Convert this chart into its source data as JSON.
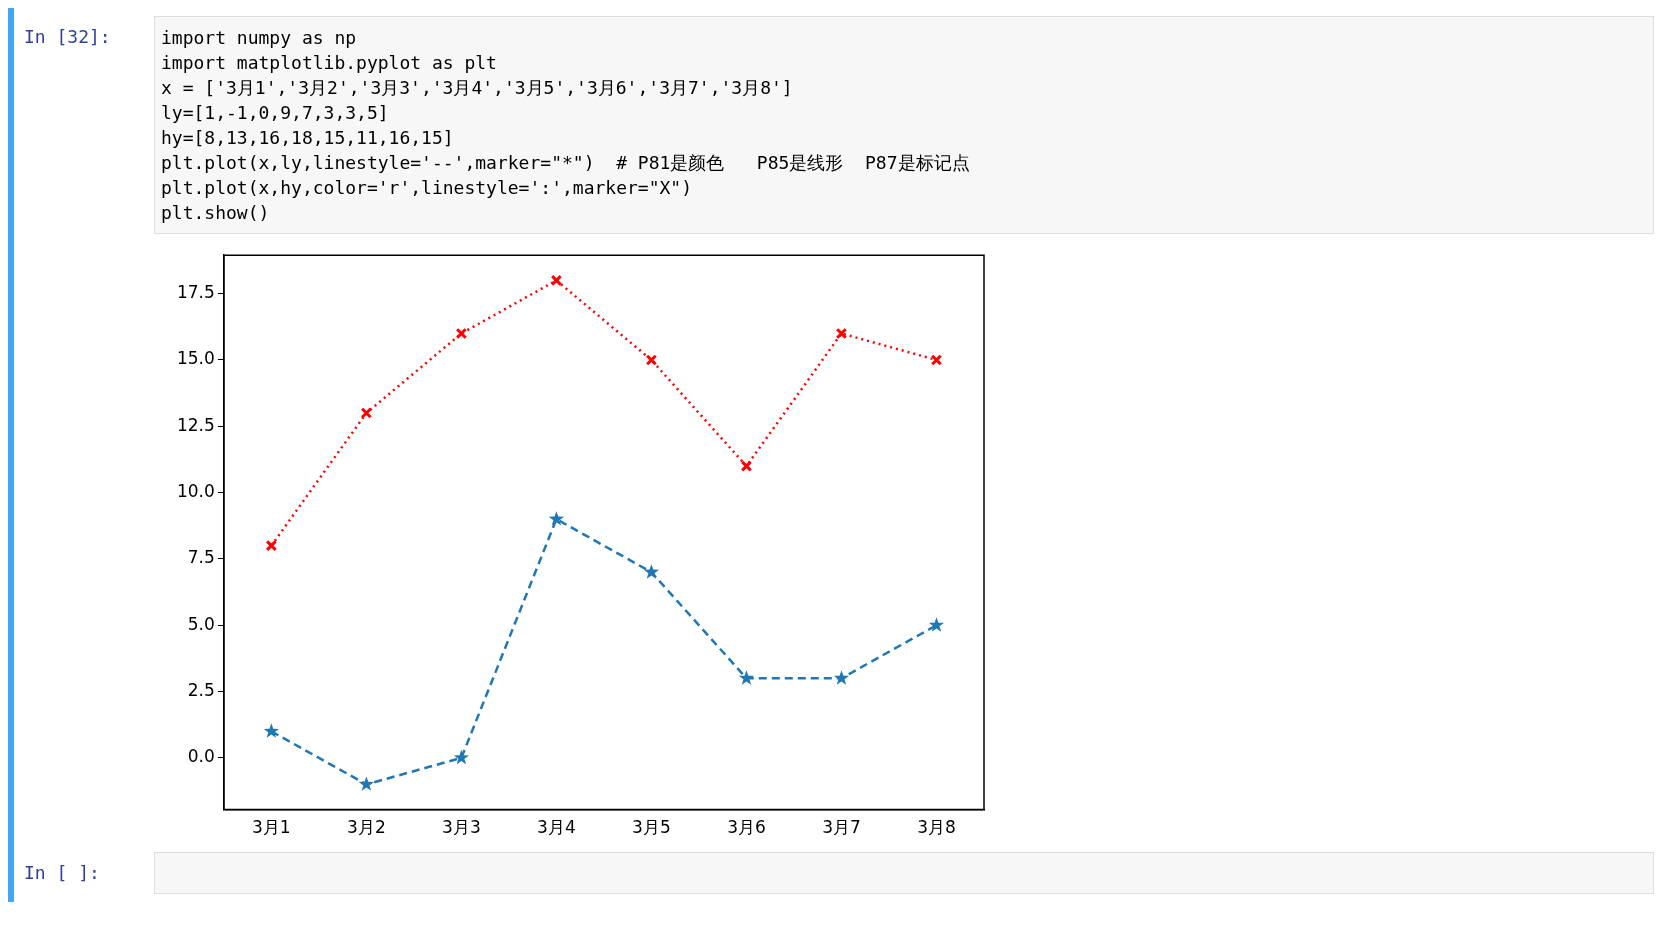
{
  "chart_data": {
    "type": "line",
    "categories": [
      "3月1",
      "3月2",
      "3月3",
      "3月4",
      "3月5",
      "3月6",
      "3月7",
      "3月8"
    ],
    "series": [
      {
        "color": "#1f77b4",
        "values": [
          1,
          -1,
          0,
          9,
          7,
          3,
          3,
          5
        ],
        "line_style": "dashed",
        "marker": "star"
      },
      {
        "color": "#ff0000",
        "values": [
          8,
          13,
          16,
          18,
          15,
          11,
          16,
          15
        ],
        "line_style": "dotted",
        "marker": "cross"
      }
    ],
    "ylim": [
      -1.95,
      18.95
    ],
    "yticks": [
      {
        "value": 0,
        "label": "0.0"
      },
      {
        "value": 2.5,
        "label": "2.5"
      },
      {
        "value": 5,
        "label": "5.0"
      },
      {
        "value": 7.5,
        "label": "7.5"
      },
      {
        "value": 10,
        "label": "10.0"
      },
      {
        "value": 12.5,
        "label": "12.5"
      },
      {
        "value": 15,
        "label": "15.0"
      },
      {
        "value": 17.5,
        "label": "17.5"
      }
    ],
    "grid": false,
    "legend": false,
    "annotations": [
      "In [32]:",
      "import numpy as np",
      "import matplotlib.pyplot as plt",
      "x = ['3月1','3月2','3月3','3月4','3月5','3月6','3月7','3月8']",
      "ly=[1,-1,0,9,7,3,3,5]",
      "hy=[8,13,16,18,15,11,16,15]",
      "plt.plot(x,ly,linestyle='--',marker=\"*\")  # P81是颜色   P85是线形  P87是标记点",
      "plt.plot(x,hy,color='r',linestyle=':',marker=\"X\")",
      "plt.show()",
      "In [ ]:"
    ]
  }
}
